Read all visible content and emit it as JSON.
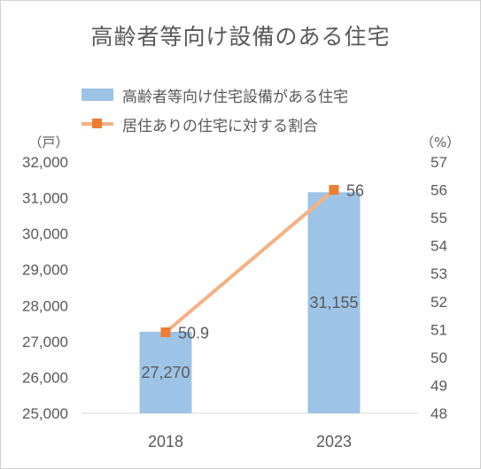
{
  "chart_data": {
    "type": "bar+line",
    "title": "高齢者等向け設備のある住宅",
    "categories": [
      "2018",
      "2023"
    ],
    "series": [
      {
        "name": "高齢者等向け住宅設備がある住宅",
        "type": "bar",
        "axis": "left",
        "values": [
          27270,
          31155
        ],
        "value_labels": [
          "27,270",
          "31,155"
        ],
        "color": "#9dc3e6"
      },
      {
        "name": "居住ありの住宅に対する割合",
        "type": "line",
        "axis": "right",
        "values": [
          50.9,
          56
        ],
        "value_labels": [
          "50.9",
          "56"
        ],
        "color": "#f4b183",
        "marker_color": "#ed7d31"
      }
    ],
    "y_left": {
      "unit": "（戸）",
      "range": [
        25000,
        32000
      ],
      "ticks": [
        25000,
        26000,
        27000,
        28000,
        29000,
        30000,
        31000,
        32000
      ],
      "tick_labels": [
        "25,000",
        "26,000",
        "27,000",
        "28,000",
        "29,000",
        "30,000",
        "31,000",
        "32,000"
      ]
    },
    "y_right": {
      "unit": "（%）",
      "range": [
        48,
        57
      ],
      "ticks": [
        48,
        49,
        50,
        51,
        52,
        53,
        54,
        55,
        56,
        57
      ],
      "tick_labels": [
        "48",
        "49",
        "50",
        "51",
        "52",
        "53",
        "54",
        "55",
        "56",
        "57"
      ]
    },
    "grid": false,
    "legend_position": "top"
  }
}
